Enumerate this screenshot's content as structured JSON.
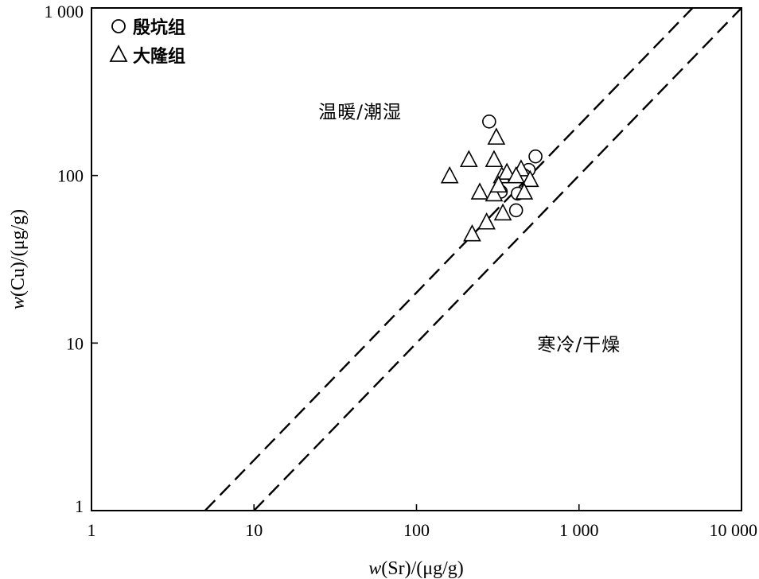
{
  "chart_data": {
    "type": "scatter",
    "xscale": "log",
    "yscale": "log",
    "xlim": [
      1,
      10000
    ],
    "ylim": [
      1,
      1000
    ],
    "xticks": [
      {
        "value": 1,
        "label": "1"
      },
      {
        "value": 10,
        "label": "10"
      },
      {
        "value": 100,
        "label": "100"
      },
      {
        "value": 1000,
        "label": "1 000"
      },
      {
        "value": 10000,
        "label": "10 000"
      }
    ],
    "yticks": [
      {
        "value": 1,
        "label": "1"
      },
      {
        "value": 10,
        "label": "10"
      },
      {
        "value": 100,
        "label": "100"
      },
      {
        "value": 1000,
        "label": "1 000"
      }
    ],
    "xlabel": {
      "var": "w",
      "rest": "(Sr)/(μg/g)"
    },
    "ylabel": {
      "var": "w",
      "rest": "(Cu)/(μg/g)"
    },
    "legend_position": "top-left",
    "grid": false,
    "series": [
      {
        "name": "殷坑组",
        "marker": "circle",
        "points": [
          [
            280,
            210
          ],
          [
            540,
            130
          ],
          [
            490,
            108
          ],
          [
            460,
            100
          ],
          [
            330,
            80
          ],
          [
            420,
            78
          ],
          [
            410,
            62
          ]
        ]
      },
      {
        "name": "大隆组",
        "marker": "triangle",
        "points": [
          [
            310,
            170
          ],
          [
            160,
            100
          ],
          [
            210,
            125
          ],
          [
            300,
            125
          ],
          [
            245,
            80
          ],
          [
            335,
            100
          ],
          [
            360,
            105
          ],
          [
            440,
            110
          ],
          [
            410,
            100
          ],
          [
            300,
            78
          ],
          [
            320,
            88
          ],
          [
            500,
            95
          ],
          [
            460,
            80
          ],
          [
            340,
            60
          ],
          [
            270,
            53
          ],
          [
            220,
            45
          ]
        ]
      }
    ],
    "reference_lines": [
      {
        "style": "dashed",
        "from": [
          5,
          1
        ],
        "to": [
          5000,
          1000
        ]
      },
      {
        "style": "dashed",
        "from": [
          10,
          1
        ],
        "to": [
          10000,
          1000
        ]
      }
    ],
    "annotations": [
      {
        "text": "温暖/潮湿",
        "x": 45,
        "y": 220
      },
      {
        "text": "寒冷/干燥",
        "x": 1000,
        "y": 9
      }
    ]
  }
}
